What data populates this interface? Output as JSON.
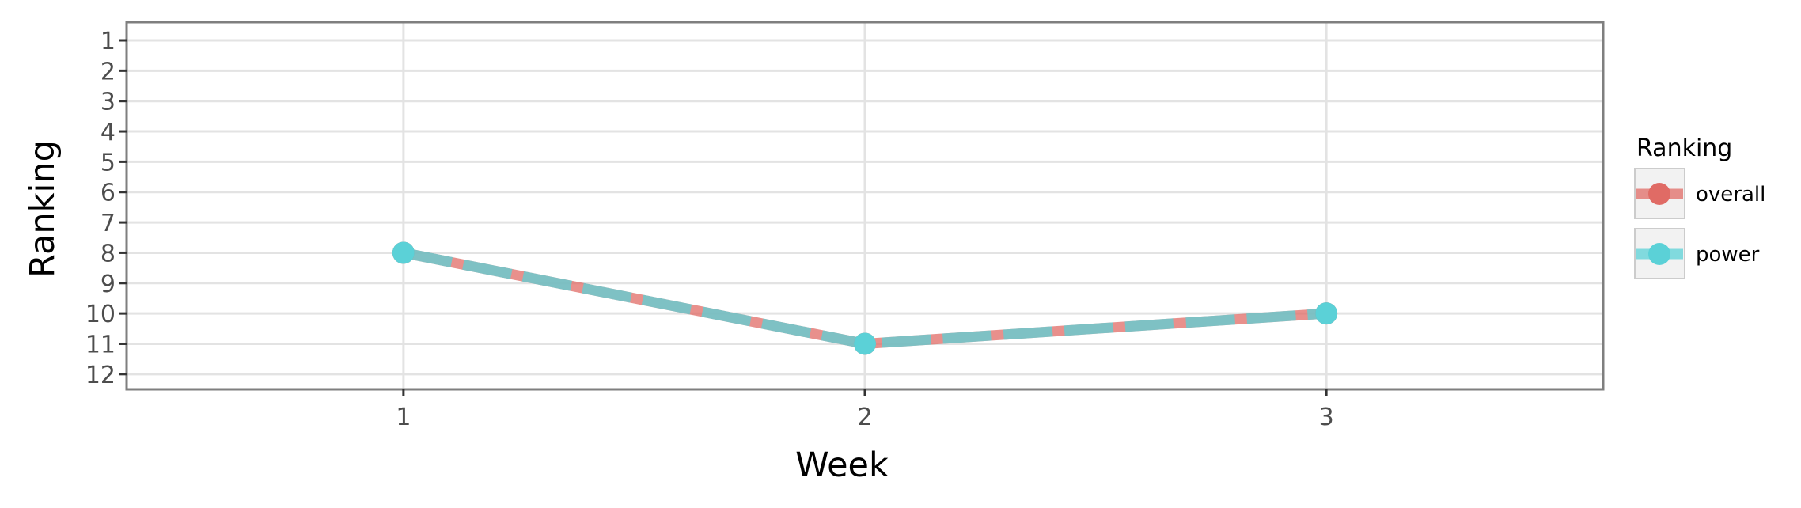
{
  "chart_data": {
    "type": "line",
    "xlabel": "Week",
    "ylabel": "Ranking",
    "x": [
      1,
      2,
      3
    ],
    "x_ticks": [
      "1",
      "2",
      "3"
    ],
    "xlim": [
      0.4,
      3.6
    ],
    "y_ticks": [
      "1",
      "2",
      "3",
      "4",
      "5",
      "6",
      "7",
      "8",
      "9",
      "10",
      "11",
      "12"
    ],
    "ylim": [
      0.4,
      12.5
    ],
    "y_reversed": true,
    "grid": true,
    "legend": {
      "title": "Ranking",
      "placement": "right",
      "entries": [
        "overall",
        "power"
      ]
    },
    "series": [
      {
        "name": "overall",
        "values": [
          8,
          11,
          10
        ],
        "color": "#e06b65",
        "line_style": "solid"
      },
      {
        "name": "power",
        "values": [
          8,
          11,
          10
        ],
        "color": "#5bd1d7",
        "line_style": "dashed"
      }
    ]
  }
}
